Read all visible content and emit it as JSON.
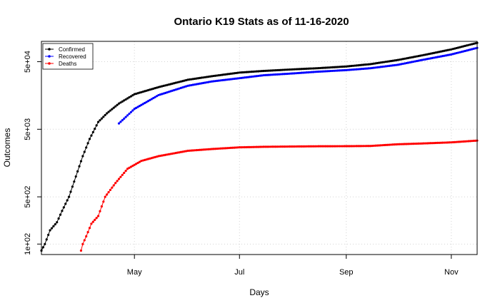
{
  "chart_data": {
    "type": "line",
    "title": "Ontario K19 Stats as of 11-16-2020",
    "xlabel": "Days",
    "ylabel": "Outcomes",
    "x_range": [
      "2020-03-08",
      "2020-11-16"
    ],
    "x_ticks": [
      {
        "date": "2020-05-01",
        "label": "May"
      },
      {
        "date": "2020-07-01",
        "label": "Jul"
      },
      {
        "date": "2020-09-01",
        "label": "Sep"
      },
      {
        "date": "2020-11-01",
        "label": "Nov"
      }
    ],
    "y_scale": "log",
    "ylim": [
      70,
      100000
    ],
    "y_ticks": [
      {
        "value": 100,
        "label": "1e+02"
      },
      {
        "value": 500,
        "label": "5e+02"
      },
      {
        "value": 5000,
        "label": "5e+03"
      },
      {
        "value": 50000,
        "label": "5e+04"
      }
    ],
    "grid": true,
    "legend_position": "top-left",
    "series": [
      {
        "name": "Confirmed",
        "color": "#000000",
        "points": [
          [
            "2020-03-08",
            80
          ],
          [
            "2020-03-10",
            100
          ],
          [
            "2020-03-13",
            160
          ],
          [
            "2020-03-17",
            210
          ],
          [
            "2020-03-20",
            310
          ],
          [
            "2020-03-24",
            500
          ],
          [
            "2020-03-28",
            1000
          ],
          [
            "2020-04-01",
            2000
          ],
          [
            "2020-04-05",
            3600
          ],
          [
            "2020-04-10",
            6400
          ],
          [
            "2020-04-15",
            8600
          ],
          [
            "2020-04-22",
            12000
          ],
          [
            "2020-05-01",
            16500
          ],
          [
            "2020-05-15",
            21000
          ],
          [
            "2020-06-01",
            27000
          ],
          [
            "2020-06-15",
            30500
          ],
          [
            "2020-07-01",
            34500
          ],
          [
            "2020-07-15",
            36500
          ],
          [
            "2020-08-01",
            38500
          ],
          [
            "2020-08-15",
            40000
          ],
          [
            "2020-09-01",
            42500
          ],
          [
            "2020-09-15",
            46000
          ],
          [
            "2020-10-01",
            53000
          ],
          [
            "2020-10-15",
            62000
          ],
          [
            "2020-11-01",
            76000
          ],
          [
            "2020-11-16",
            95000
          ]
        ]
      },
      {
        "name": "Recovered",
        "color": "#0000ff",
        "points": [
          [
            "2020-04-22",
            6100
          ],
          [
            "2020-05-01",
            10000
          ],
          [
            "2020-05-15",
            16000
          ],
          [
            "2020-06-01",
            22000
          ],
          [
            "2020-06-15",
            25500
          ],
          [
            "2020-07-01",
            28500
          ],
          [
            "2020-07-15",
            31500
          ],
          [
            "2020-08-01",
            33500
          ],
          [
            "2020-08-15",
            35500
          ],
          [
            "2020-09-01",
            37500
          ],
          [
            "2020-09-15",
            40000
          ],
          [
            "2020-10-01",
            45000
          ],
          [
            "2020-10-15",
            53000
          ],
          [
            "2020-11-01",
            64000
          ],
          [
            "2020-11-16",
            80000
          ]
        ]
      },
      {
        "name": "Deaths",
        "color": "#ff0000",
        "points": [
          [
            "2020-03-31",
            80
          ],
          [
            "2020-04-01",
            100
          ],
          [
            "2020-04-03",
            130
          ],
          [
            "2020-04-06",
            200
          ],
          [
            "2020-04-10",
            260
          ],
          [
            "2020-04-14",
            500
          ],
          [
            "2020-04-20",
            800
          ],
          [
            "2020-04-27",
            1300
          ],
          [
            "2020-05-05",
            1700
          ],
          [
            "2020-05-15",
            2000
          ],
          [
            "2020-06-01",
            2400
          ],
          [
            "2020-06-15",
            2550
          ],
          [
            "2020-07-01",
            2700
          ],
          [
            "2020-07-15",
            2750
          ],
          [
            "2020-08-01",
            2780
          ],
          [
            "2020-08-15",
            2800
          ],
          [
            "2020-09-01",
            2810
          ],
          [
            "2020-09-15",
            2830
          ],
          [
            "2020-10-01",
            3000
          ],
          [
            "2020-10-15",
            3080
          ],
          [
            "2020-11-01",
            3200
          ],
          [
            "2020-11-16",
            3400
          ]
        ]
      }
    ]
  }
}
